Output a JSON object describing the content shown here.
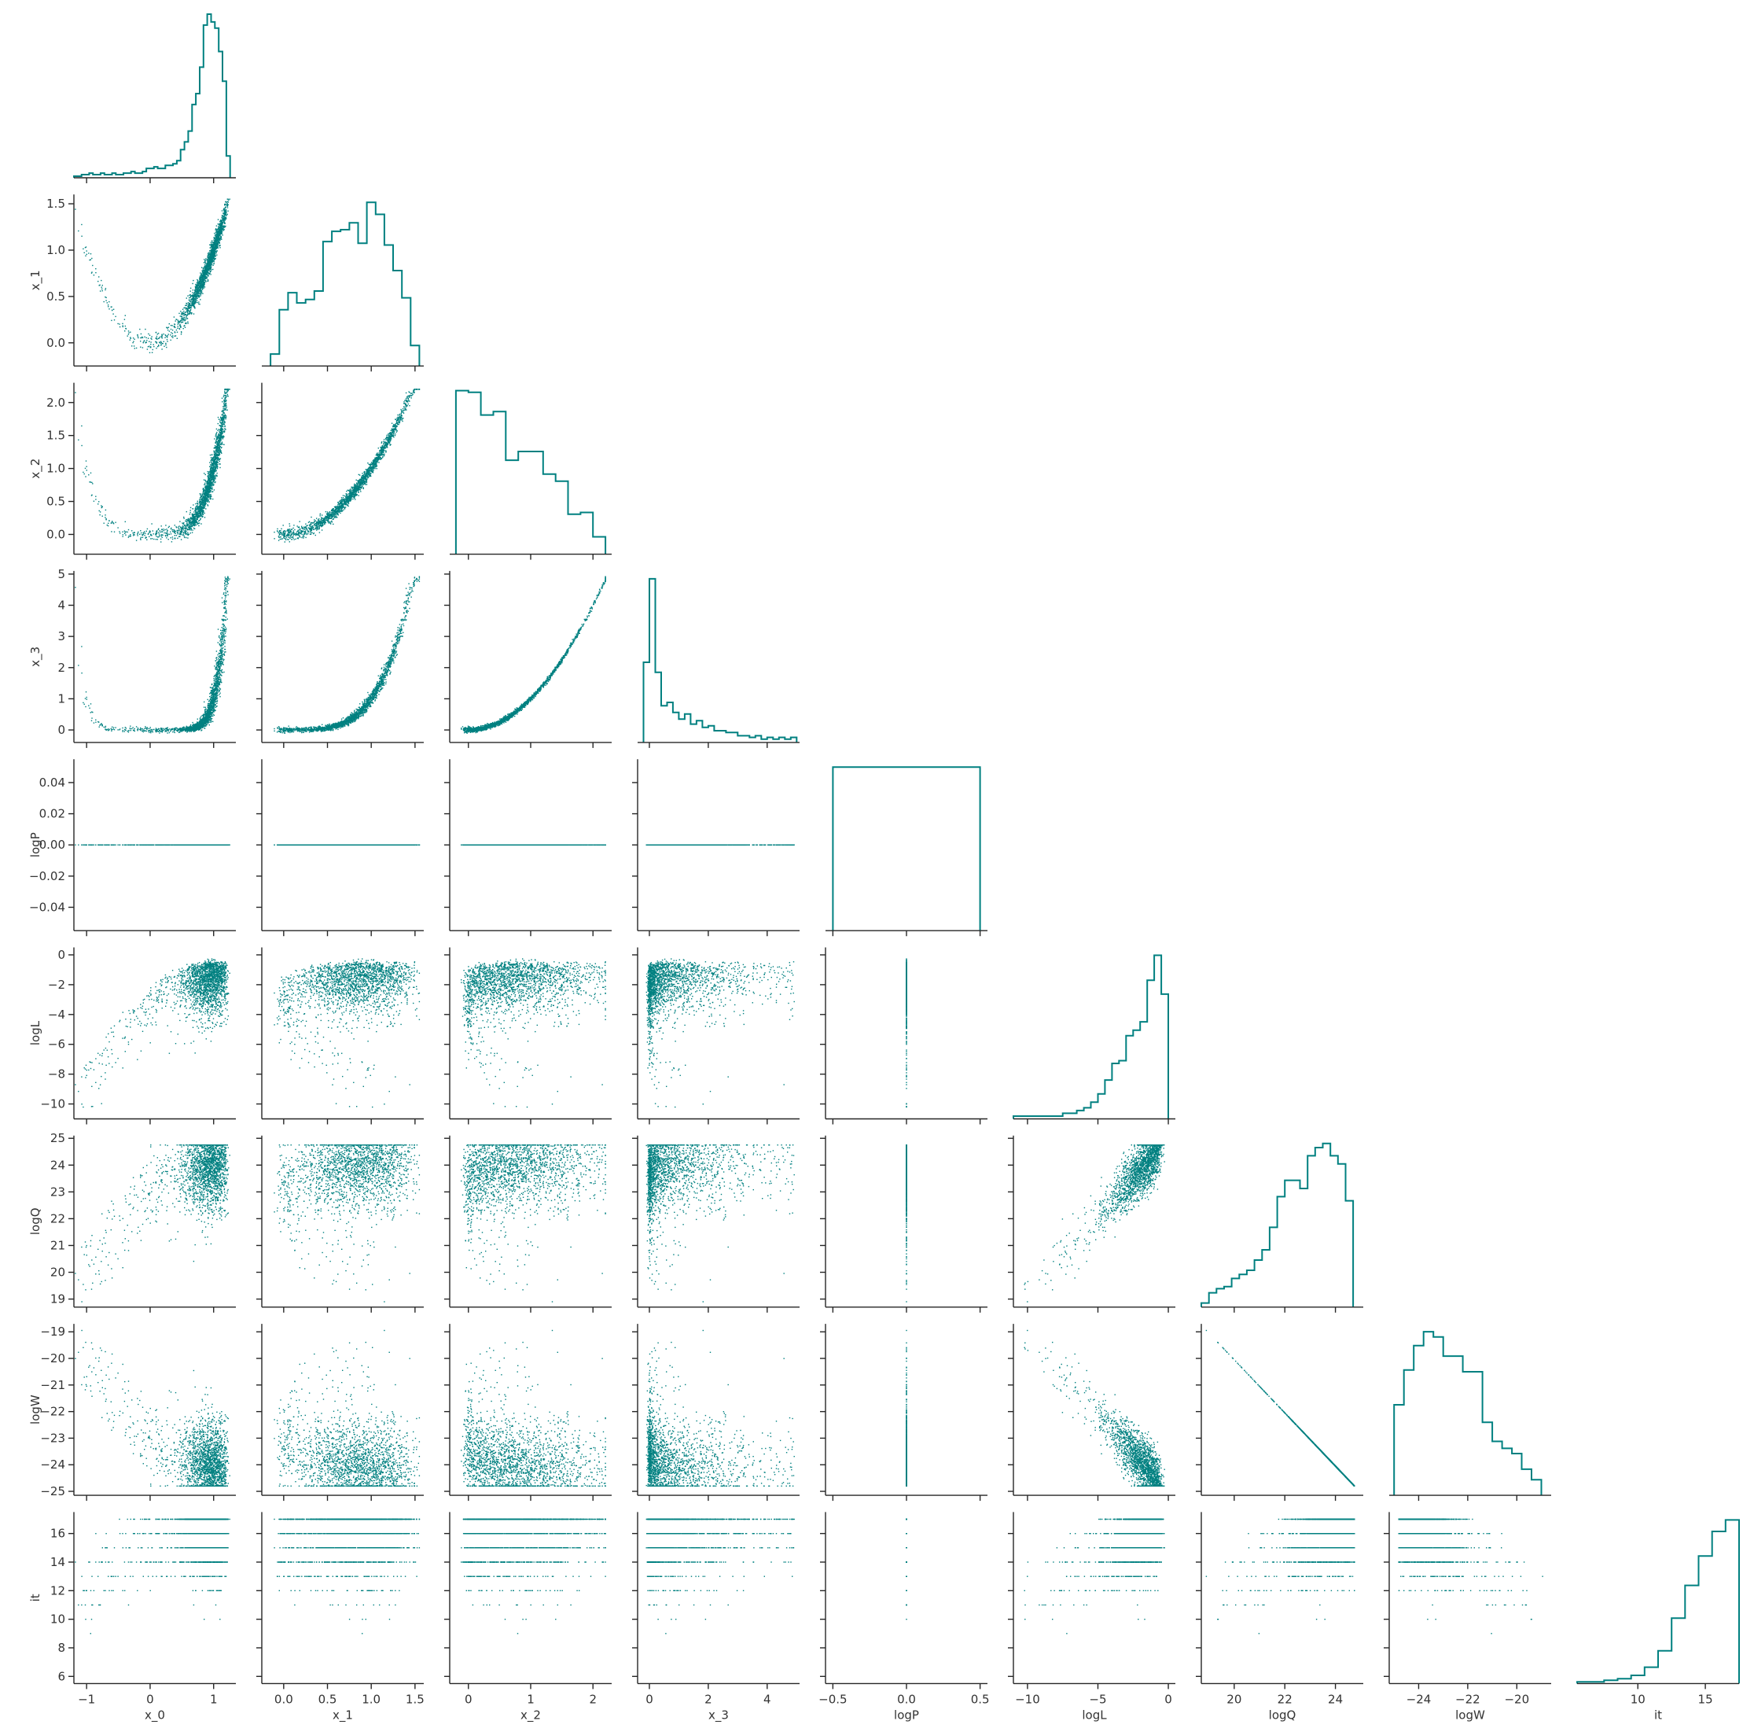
{
  "figure": {
    "type": "corner pair plot",
    "color": "#008080",
    "axis_color": "#262626"
  },
  "chart_data": {
    "type": "scatter",
    "variables": [
      "x_0",
      "x_1",
      "x_2",
      "x_3",
      "logP",
      "logL",
      "logQ",
      "logW",
      "it"
    ],
    "axes": {
      "x_0": {
        "range": [
          -1.2,
          1.35
        ],
        "ticks": [
          -1,
          0,
          1
        ],
        "tick_labels": [
          "−1",
          "0",
          "1"
        ]
      },
      "x_1": {
        "range": [
          -0.25,
          1.6
        ],
        "ticks": [
          0.0,
          0.5,
          1.0,
          1.5
        ],
        "tick_labels": [
          "0.0",
          "0.5",
          "1.0",
          "1.5"
        ]
      },
      "x_2": {
        "range": [
          -0.3,
          2.3
        ],
        "ticks": [
          0,
          1,
          2
        ],
        "tick_labels": [
          "0",
          "1",
          "2"
        ],
        "y_ticks": [
          0.0,
          0.5,
          1.0,
          1.5,
          2.0
        ],
        "y_tick_labels": [
          "0.0",
          "0.5",
          "1.0",
          "1.5",
          "2.0"
        ]
      },
      "x_3": {
        "range": [
          -0.4,
          5.1
        ],
        "ticks": [
          0,
          2,
          4
        ],
        "tick_labels": [
          "0",
          "2",
          "4"
        ],
        "y_ticks": [
          0,
          1,
          2,
          3,
          4,
          5
        ],
        "y_tick_labels": [
          "0",
          "1",
          "2",
          "3",
          "4",
          "5"
        ]
      },
      "logP": {
        "range": [
          -0.55,
          0.55
        ],
        "ticks": [
          -0.5,
          0.0,
          0.5
        ],
        "tick_labels": [
          "−0.5",
          "0.0",
          "0.5"
        ],
        "y_range": [
          -0.055,
          0.055
        ],
        "y_ticks": [
          -0.04,
          -0.02,
          0.0,
          0.02,
          0.04
        ],
        "y_tick_labels": [
          "−0.04",
          "−0.02",
          "0.00",
          "0.02",
          "0.04"
        ]
      },
      "logL": {
        "range": [
          -11.0,
          0.5
        ],
        "ticks": [
          -10,
          -5,
          0
        ],
        "tick_labels": [
          "−10",
          "−5",
          "0"
        ],
        "y_ticks": [
          -10,
          -8,
          -6,
          -4,
          -2,
          0
        ],
        "y_tick_labels": [
          "−10",
          "−8",
          "−6",
          "−4",
          "−2",
          "0"
        ]
      },
      "logQ": {
        "range": [
          18.7,
          25.1
        ],
        "ticks": [
          20,
          22,
          24
        ],
        "tick_labels": [
          "20",
          "22",
          "24"
        ],
        "y_ticks": [
          19,
          20,
          21,
          22,
          23,
          24,
          25
        ],
        "y_tick_labels": [
          "19",
          "20",
          "21",
          "22",
          "23",
          "24",
          "25"
        ]
      },
      "logW": {
        "range": [
          -25.2,
          -18.6
        ],
        "ticks": [
          -24,
          -22,
          -20
        ],
        "tick_labels": [
          "−24",
          "−22",
          "−20"
        ],
        "y_range": [
          -25.15,
          -18.7
        ],
        "y_ticks": [
          -25,
          -24,
          -23,
          -22,
          -21,
          -20,
          -19
        ],
        "y_tick_labels": [
          "−25",
          "−24",
          "−23",
          "−22",
          "−21",
          "−20",
          "−19"
        ]
      },
      "it": {
        "range": [
          5.5,
          17.5
        ],
        "ticks": [
          10,
          15
        ],
        "tick_labels": [
          "10",
          "15"
        ],
        "y_ticks": [
          6,
          8,
          10,
          12,
          14,
          16
        ],
        "y_tick_labels": [
          "6",
          "8",
          "10",
          "12",
          "14",
          "16"
        ]
      }
    },
    "histograms": {
      "x_0": {
        "edges": [
          -1.2,
          -1.14,
          -1.08,
          -1.02,
          -0.96,
          -0.9,
          -0.84,
          -0.78,
          -0.72,
          -0.66,
          -0.6,
          -0.54,
          -0.48,
          -0.42,
          -0.36,
          -0.3,
          -0.24,
          -0.18,
          -0.12,
          -0.06,
          0.0,
          0.06,
          0.12,
          0.18,
          0.24,
          0.3,
          0.36,
          0.42,
          0.48,
          0.54,
          0.6,
          0.66,
          0.72,
          0.78,
          0.84,
          0.9,
          0.96,
          1.02,
          1.08,
          1.14,
          1.2,
          1.26
        ],
        "counts": [
          1,
          1,
          2,
          2,
          3,
          2,
          2,
          3,
          2,
          2,
          3,
          2,
          2,
          3,
          3,
          4,
          3,
          3,
          4,
          6,
          6,
          7,
          6,
          6,
          8,
          8,
          9,
          11,
          18,
          23,
          30,
          47,
          54,
          71,
          98,
          105,
          100,
          96,
          81,
          62,
          14
        ]
      },
      "x_1": {
        "edges": [
          -0.15,
          -0.05,
          0.05,
          0.15,
          0.25,
          0.35,
          0.45,
          0.55,
          0.65,
          0.75,
          0.85,
          0.95,
          1.05,
          1.15,
          1.25,
          1.35,
          1.45,
          1.55
        ],
        "counts": [
          7,
          33,
          43,
          37,
          39,
          44,
          73,
          79,
          80,
          84,
          72,
          96,
          89,
          71,
          56,
          40,
          12
        ]
      },
      "x_2": {
        "edges": [
          -0.2,
          0.0,
          0.2,
          0.4,
          0.6,
          0.8,
          1.0,
          1.2,
          1.4,
          1.6,
          1.8,
          2.0,
          2.2
        ],
        "counts": [
          94,
          93,
          80,
          82,
          54,
          59,
          59,
          46,
          42,
          23,
          24,
          10
        ]
      },
      "x_3": {
        "edges": [
          -0.2,
          0.0,
          0.2,
          0.4,
          0.6,
          0.8,
          1.0,
          1.2,
          1.4,
          1.6,
          1.8,
          2.0,
          2.2,
          2.4,
          2.6,
          2.8,
          3.0,
          3.2,
          3.4,
          3.6,
          3.8,
          4.0,
          4.2,
          4.4,
          4.6,
          4.8,
          5.0
        ],
        "counts": [
          48,
          98,
          42,
          22,
          24,
          18,
          14,
          17,
          11,
          13,
          9,
          10,
          7,
          7,
          6,
          6,
          4,
          4,
          3,
          4,
          2,
          3,
          2,
          3,
          2,
          3
        ]
      },
      "logP": {
        "edges": [
          -0.5,
          0.5
        ],
        "counts": [
          1
        ]
      },
      "logL": {
        "edges": [
          -11.0,
          -10.5,
          -10.0,
          -9.5,
          -9.0,
          -8.5,
          -8.0,
          -7.5,
          -7.0,
          -6.5,
          -6.0,
          -5.5,
          -5.0,
          -4.5,
          -4.0,
          -3.5,
          -3.0,
          -2.5,
          -2.0,
          -1.5,
          -1.0,
          -0.5,
          0.0
        ],
        "counts": [
          1,
          1,
          1,
          1,
          1,
          1,
          1,
          2,
          2,
          3,
          4,
          6,
          9,
          14,
          20,
          21,
          30,
          32,
          35,
          50,
          59,
          45
        ]
      },
      "logQ": {
        "edges": [
          18.7,
          19.0,
          19.3,
          19.6,
          19.9,
          20.2,
          20.5,
          20.8,
          21.1,
          21.4,
          21.7,
          22.0,
          22.3,
          22.6,
          22.9,
          23.2,
          23.5,
          23.8,
          24.1,
          24.4,
          24.7
        ],
        "counts": [
          2,
          7,
          9,
          10,
          14,
          16,
          18,
          23,
          28,
          39,
          54,
          62,
          62,
          58,
          74,
          78,
          80,
          74,
          70,
          52
        ]
      },
      "logW": {
        "edges": [
          -25.0,
          -24.6,
          -24.2,
          -23.8,
          -23.4,
          -23.0,
          -22.6,
          -22.2,
          -21.8,
          -21.4,
          -21.0,
          -20.6,
          -20.2,
          -19.8,
          -19.4,
          -19.0
        ],
        "counts": [
          52,
          72,
          86,
          94,
          91,
          80,
          80,
          71,
          71,
          42,
          31,
          27,
          24,
          15,
          9
        ]
      },
      "it": {
        "edges": [
          5.5,
          6.5,
          7.5,
          8.5,
          9.5,
          10.5,
          11.5,
          12.5,
          13.5,
          14.5,
          15.5,
          16.5,
          17.5
        ],
        "counts": [
          1,
          1,
          2,
          3,
          5,
          10,
          20,
          40,
          60,
          78,
          93,
          100
        ]
      }
    },
    "samples": 2000
  }
}
